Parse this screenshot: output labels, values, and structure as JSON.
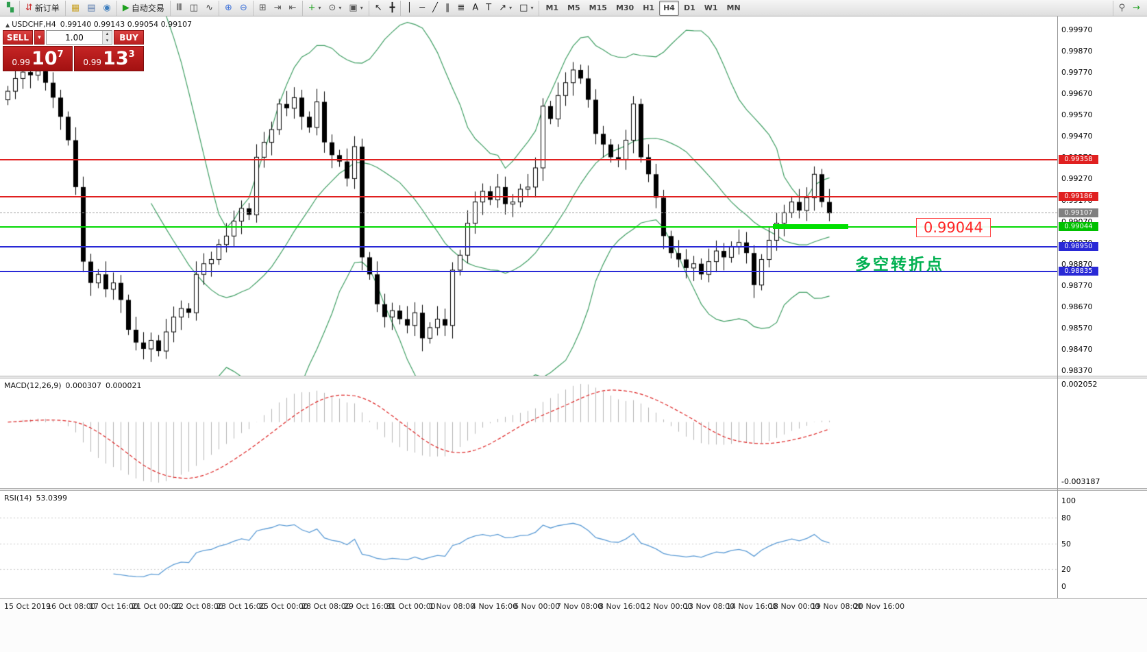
{
  "toolbar": {
    "groups": [
      {
        "name": "app",
        "items": [
          {
            "name": "app-icon",
            "glyph": "▚",
            "color": "#2e9e4f",
            "inter": false
          }
        ]
      },
      {
        "name": "orders",
        "items": [
          {
            "name": "new-order-button",
            "glyph": "⇵",
            "color": "#cc3333",
            "label": "新订单"
          }
        ]
      },
      {
        "name": "windows",
        "items": [
          {
            "name": "market-watch-icon",
            "glyph": "▦",
            "color": "#c9a227"
          },
          {
            "name": "data-window-icon",
            "glyph": "▤",
            "color": "#5577aa"
          },
          {
            "name": "navigator-icon",
            "glyph": "◉",
            "color": "#3f7fbf"
          }
        ]
      },
      {
        "name": "autotrading",
        "items": [
          {
            "name": "autotrading-button",
            "glyph": "▶",
            "color": "#1fa11f",
            "label": "自动交易"
          }
        ]
      },
      {
        "name": "chart-types",
        "items": [
          {
            "name": "bar-chart-icon",
            "glyph": "Ⅲ",
            "color": "#444444"
          },
          {
            "name": "candlestick-chart-icon",
            "glyph": "◫",
            "color": "#444444"
          },
          {
            "name": "line-chart-icon",
            "glyph": "∿",
            "color": "#444444"
          }
        ]
      },
      {
        "name": "zoom",
        "items": [
          {
            "name": "zoom-in-icon",
            "glyph": "⊕",
            "color": "#3a6fd8"
          },
          {
            "name": "zoom-out-icon",
            "glyph": "⊖",
            "color": "#3a6fd8"
          }
        ]
      },
      {
        "name": "arrange",
        "items": [
          {
            "name": "tile-windows-icon",
            "glyph": "⊞",
            "color": "#555555"
          },
          {
            "name": "auto-scroll-icon",
            "glyph": "⇥",
            "color": "#555555"
          },
          {
            "name": "chart-shift-icon",
            "glyph": "⇤",
            "color": "#555555"
          }
        ]
      },
      {
        "name": "add",
        "items": [
          {
            "name": "new-chart-icon",
            "glyph": "+",
            "color": "#1fa11f",
            "dd": true
          },
          {
            "name": "periods-icon",
            "glyph": "⊙",
            "color": "#555555",
            "dd": true
          },
          {
            "name": "templates-icon",
            "glyph": "▣",
            "color": "#555555",
            "dd": true
          }
        ]
      },
      {
        "name": "pointer",
        "items": [
          {
            "name": "cursor-icon",
            "glyph": "↖",
            "color": "#222222"
          },
          {
            "name": "crosshair-icon",
            "glyph": "╋",
            "color": "#222222"
          }
        ]
      },
      {
        "name": "objects",
        "items": [
          {
            "name": "vertical-line-icon",
            "glyph": "│",
            "color": "#222222"
          },
          {
            "name": "horizontal-line-icon",
            "glyph": "─",
            "color": "#222222"
          },
          {
            "name": "trendline-icon",
            "glyph": "╱",
            "color": "#222222"
          },
          {
            "name": "channel-icon",
            "glyph": "∥",
            "color": "#222222"
          },
          {
            "name": "fibonacci-icon",
            "glyph": "≣",
            "color": "#222222"
          },
          {
            "name": "text-icon",
            "glyph": "A",
            "color": "#222222"
          },
          {
            "name": "label-icon",
            "glyph": "T",
            "color": "#222222"
          },
          {
            "name": "arrows-icon",
            "glyph": "↗",
            "color": "#222222",
            "dd": true
          },
          {
            "name": "shapes-icon",
            "glyph": "□",
            "color": "#222222",
            "dd": true
          }
        ]
      },
      {
        "name": "timeframes",
        "tf": true,
        "active": "H4",
        "items": [
          {
            "name": "tf-m1-button",
            "label": "M1"
          },
          {
            "name": "tf-m5-button",
            "label": "M5"
          },
          {
            "name": "tf-m15-button",
            "label": "M15"
          },
          {
            "name": "tf-m30-button",
            "label": "M30"
          },
          {
            "name": "tf-h1-button",
            "label": "H1"
          },
          {
            "name": "tf-h4-button",
            "label": "H4"
          },
          {
            "name": "tf-d1-button",
            "label": "D1"
          },
          {
            "name": "tf-w1-button",
            "label": "W1"
          },
          {
            "name": "tf-mn-button",
            "label": "MN"
          }
        ]
      },
      {
        "name": "right",
        "right": true,
        "items": [
          {
            "name": "search-icon",
            "glyph": "⚲",
            "color": "#555555"
          },
          {
            "name": "help-icon",
            "glyph": "→",
            "color": "#1fa11f"
          }
        ]
      }
    ]
  },
  "chart": {
    "symbol": "USDCHF,H4",
    "ohlc": "0.99140 0.99143 0.99054 0.99107"
  },
  "trade_panel": {
    "sell_label": "SELL",
    "buy_label": "BUY",
    "volume": "1.00",
    "sell_price": {
      "small": "0.99",
      "big": "10",
      "sup": "7"
    },
    "buy_price": {
      "small": "0.99",
      "big": "13",
      "sup": "3"
    }
  },
  "annotations": {
    "price_callout": "0.99044",
    "pivot_note": "多空转折点",
    "callout_color": "#ff2626",
    "note_color": "#00b050"
  },
  "macd": {
    "label": "MACD(12,26,9)",
    "value1": "0.000307",
    "value2": "0.000021",
    "axis_max": "0.002052",
    "axis_min": "-0.003187",
    "histogram_color": "#b4b4b4",
    "signal_color": "#dd2222"
  },
  "rsi": {
    "label": "RSI(14)",
    "value": "53.0399",
    "line_color": "#5b9bd5",
    "axis": [
      {
        "label": "100",
        "v": 100
      },
      {
        "label": "80",
        "v": 80
      },
      {
        "label": "50",
        "v": 50
      },
      {
        "label": "20",
        "v": 20
      },
      {
        "label": "0",
        "v": 0
      }
    ]
  },
  "chart_data": {
    "type": "candlestick",
    "symbol": "USDCHF",
    "timeframe": "H4",
    "ylim": [
      0.9837,
      0.9997
    ],
    "bull_fill": "#ffffff",
    "bear_fill": "#000000",
    "price_labels": [
      "0.99970",
      "0.99870",
      "0.99770",
      "0.99670",
      "0.99570",
      "0.99470",
      "0.99370",
      "0.99270",
      "0.99170",
      "0.99070",
      "0.98970",
      "0.98870",
      "0.98770",
      "0.98670",
      "0.98570",
      "0.98470",
      "0.98370"
    ],
    "time_labels": [
      "15 Oct 2019",
      "16 Oct 08:00",
      "17 Oct 16:00",
      "21 Oct 00:00",
      "22 Oct 08:00",
      "23 Oct 16:00",
      "25 Oct 00:00",
      "28 Oct 08:00",
      "29 Oct 16:00",
      "31 Oct 00:00",
      "1 Nov 08:00",
      "4 Nov 16:00",
      "6 Nov 00:00",
      "7 Nov 08:00",
      "8 Nov 16:00",
      "12 Nov 00:00",
      "13 Nov 08:00",
      "14 Nov 16:00",
      "18 Nov 00:00",
      "19 Nov 08:00",
      "20 Nov 16:00"
    ],
    "closes": [
      0.9968,
      0.9974,
      0.9977,
      0.99755,
      0.99775,
      0.9972,
      0.9965,
      0.9956,
      0.9945,
      0.9923,
      0.9888,
      0.9878,
      0.9882,
      0.9875,
      0.9878,
      0.987,
      0.9856,
      0.985,
      0.9847,
      0.9851,
      0.9846,
      0.9855,
      0.9862,
      0.9866,
      0.9864,
      0.9882,
      0.9887,
      0.9889,
      0.9896,
      0.99,
      0.9907,
      0.9913,
      0.991,
      0.9937,
      0.9944,
      0.995,
      0.9962,
      0.996,
      0.9965,
      0.9956,
      0.9951,
      0.9963,
      0.9944,
      0.9938,
      0.9935,
      0.9927,
      0.9942,
      0.989,
      0.9882,
      0.9868,
      0.9862,
      0.9865,
      0.9861,
      0.9858,
      0.9864,
      0.9852,
      0.9857,
      0.9861,
      0.9858,
      0.9884,
      0.9891,
      0.9906,
      0.9916,
      0.9921,
      0.9917,
      0.9923,
      0.9915,
      0.9916,
      0.9922,
      0.9923,
      0.9932,
      0.9961,
      0.9955,
      0.9966,
      0.9972,
      0.9978,
      0.9974,
      0.9964,
      0.9948,
      0.9943,
      0.9937,
      0.9936,
      0.9945,
      0.9962,
      0.9937,
      0.9929,
      0.9918,
      0.99,
      0.9892,
      0.9889,
      0.9885,
      0.9887,
      0.9882,
      0.9888,
      0.9893,
      0.989,
      0.9895,
      0.9897,
      0.9892,
      0.9877,
      0.9889,
      0.9898,
      0.9906,
      0.9911,
      0.9916,
      0.9912,
      0.9918,
      0.9929,
      0.9916,
      0.99107
    ],
    "bollinger": {
      "period": 20,
      "deviation": 2,
      "color": "#3f9e63"
    },
    "levels": [
      {
        "name": "resistance-1",
        "price": 0.99358,
        "label": "0.99358",
        "line_color": "#e02020",
        "badge_color": "#e02020",
        "style": "solid",
        "width": 2
      },
      {
        "name": "resistance-2",
        "price": 0.99186,
        "label": "0.99186",
        "line_color": "#e02020",
        "badge_color": "#e02020",
        "style": "solid",
        "width": 2
      },
      {
        "name": "current-price",
        "price": 0.99107,
        "label": "0.99107",
        "line_color": "#a0a0a0",
        "badge_color": "#808080",
        "style": "dashed",
        "width": 1
      },
      {
        "name": "pivot",
        "price": 0.99044,
        "label": "0.99044",
        "line_color": "#00d800",
        "badge_color": "#00c000",
        "style": "solid",
        "width": 2
      },
      {
        "name": "support-1",
        "price": 0.9895,
        "label": "0.98950",
        "line_color": "#2929d6",
        "badge_color": "#2929d6",
        "style": "solid",
        "width": 2
      },
      {
        "name": "support-2",
        "price": 0.98835,
        "label": "0.98835",
        "line_color": "#2929d6",
        "badge_color": "#2929d6",
        "style": "solid",
        "width": 2
      }
    ],
    "pivot_segment": {
      "price": 0.99044,
      "color": "#00e000"
    }
  }
}
